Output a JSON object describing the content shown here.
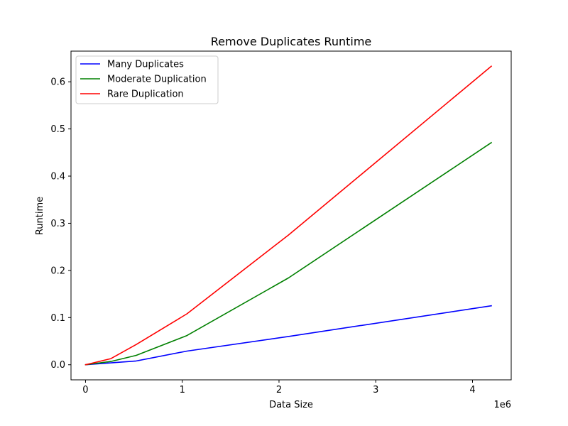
{
  "chart_data": {
    "type": "line",
    "title": "Remove Duplicates Runtime",
    "xlabel": "Data Size",
    "ylabel": "Runtime",
    "x_offset_label": "1e6",
    "x": [
      1000,
      262144,
      524288,
      1048576,
      2097152,
      4194304
    ],
    "xlim": [
      -150000,
      4400000
    ],
    "ylim": [
      -0.032,
      0.665
    ],
    "x_ticks": [
      0,
      1000000,
      2000000,
      3000000,
      4000000
    ],
    "x_tick_labels": [
      "0",
      "1",
      "2",
      "3",
      "4"
    ],
    "y_ticks": [
      0.0,
      0.1,
      0.2,
      0.3,
      0.4,
      0.5,
      0.6
    ],
    "y_tick_labels": [
      "0.0",
      "0.1",
      "0.2",
      "0.3",
      "0.4",
      "0.5",
      "0.6"
    ],
    "grid": false,
    "legend_position": "top-left",
    "series": [
      {
        "name": "Many Duplicates",
        "color": "#0000ff",
        "values": [
          0.0,
          0.004,
          0.008,
          0.029,
          0.06,
          0.125
        ]
      },
      {
        "name": "Moderate Duplication",
        "color": "#008000",
        "values": [
          0.0,
          0.007,
          0.02,
          0.062,
          0.184,
          0.471
        ]
      },
      {
        "name": "Rare Duplication",
        "color": "#ff0000",
        "values": [
          0.0,
          0.013,
          0.043,
          0.108,
          0.275,
          0.633
        ]
      }
    ]
  }
}
